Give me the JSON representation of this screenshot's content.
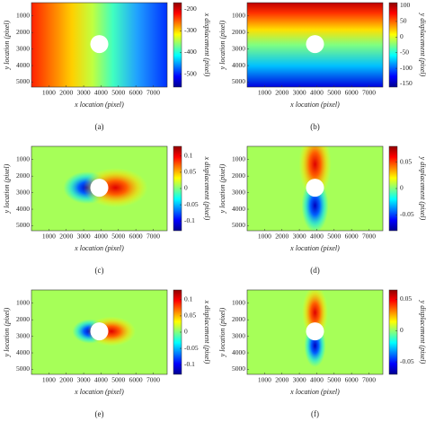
{
  "chart_data": [
    {
      "type": "heatmap",
      "caption": "(a)",
      "xlabel": "x location (pixel)",
      "ylabel": "y location (pixel)",
      "colorbar_label": "x displacement (pixel)",
      "xlim": [
        0,
        7800
      ],
      "ylim": [
        5300,
        200
      ],
      "xticks": [
        1000,
        2000,
        3000,
        4000,
        5000,
        6000,
        7000
      ],
      "yticks": [
        1000,
        2000,
        3000,
        4000,
        5000
      ],
      "clim": [
        -560,
        -170
      ],
      "cticks": [
        -200,
        -300,
        -400,
        -500
      ]
    },
    {
      "type": "heatmap",
      "caption": "(b)",
      "xlabel": "x location (pixel)",
      "ylabel": "y location (pixel)",
      "colorbar_label": "y displacement (pixel)",
      "xlim": [
        0,
        7800
      ],
      "ylim": [
        5300,
        200
      ],
      "xticks": [
        1000,
        2000,
        3000,
        4000,
        5000,
        6000,
        7000
      ],
      "yticks": [
        1000,
        2000,
        3000,
        4000,
        5000
      ],
      "clim": [
        -160,
        110
      ],
      "cticks": [
        100,
        50,
        0,
        -50,
        -100,
        -150
      ]
    },
    {
      "type": "heatmap",
      "caption": "(c)",
      "xlabel": "x location (pixel)",
      "ylabel": "y location (pixel)",
      "colorbar_label": "x displacement (pixel)",
      "xlim": [
        0,
        7800
      ],
      "ylim": [
        5300,
        200
      ],
      "xticks": [
        1000,
        2000,
        3000,
        4000,
        5000,
        6000,
        7000
      ],
      "yticks": [
        1000,
        2000,
        3000,
        4000,
        5000
      ],
      "clim": [
        -0.13,
        0.13
      ],
      "cticks": [
        0.1,
        0.05,
        0,
        -0.05,
        -0.1
      ]
    },
    {
      "type": "heatmap",
      "caption": "(d)",
      "xlabel": "x location (pixel)",
      "ylabel": "y location (pixel)",
      "colorbar_label": "y displacement (pixel)",
      "xlim": [
        0,
        7800
      ],
      "ylim": [
        5300,
        200
      ],
      "xticks": [
        1000,
        2000,
        3000,
        4000,
        5000,
        6000,
        7000
      ],
      "yticks": [
        1000,
        2000,
        3000,
        4000,
        5000
      ],
      "clim": [
        -0.08,
        0.08
      ],
      "cticks": [
        0.05,
        0,
        -0.05
      ]
    },
    {
      "type": "heatmap",
      "caption": "(e)",
      "xlabel": "x location (pixel)",
      "ylabel": "y location (pixel)",
      "colorbar_label": "x displacement (pixel)",
      "xlim": [
        0,
        7800
      ],
      "ylim": [
        5300,
        200
      ],
      "xticks": [
        1000,
        2000,
        3000,
        4000,
        5000,
        6000,
        7000
      ],
      "yticks": [
        1000,
        2000,
        3000,
        4000,
        5000
      ],
      "clim": [
        -0.13,
        0.13
      ],
      "cticks": [
        0.1,
        0.05,
        0,
        -0.05,
        -0.1
      ]
    },
    {
      "type": "heatmap",
      "caption": "(f)",
      "xlabel": "x location (pixel)",
      "ylabel": "y location (pixel)",
      "colorbar_label": "y displacement (pixel)",
      "xlim": [
        0,
        7800
      ],
      "ylim": [
        5300,
        200
      ],
      "xticks": [
        1000,
        2000,
        3000,
        4000,
        5000,
        6000,
        7000
      ],
      "yticks": [
        1000,
        2000,
        3000,
        4000,
        5000
      ],
      "clim": [
        -0.07,
        0.065
      ],
      "cticks": [
        0.05,
        0,
        -0.05
      ]
    }
  ]
}
